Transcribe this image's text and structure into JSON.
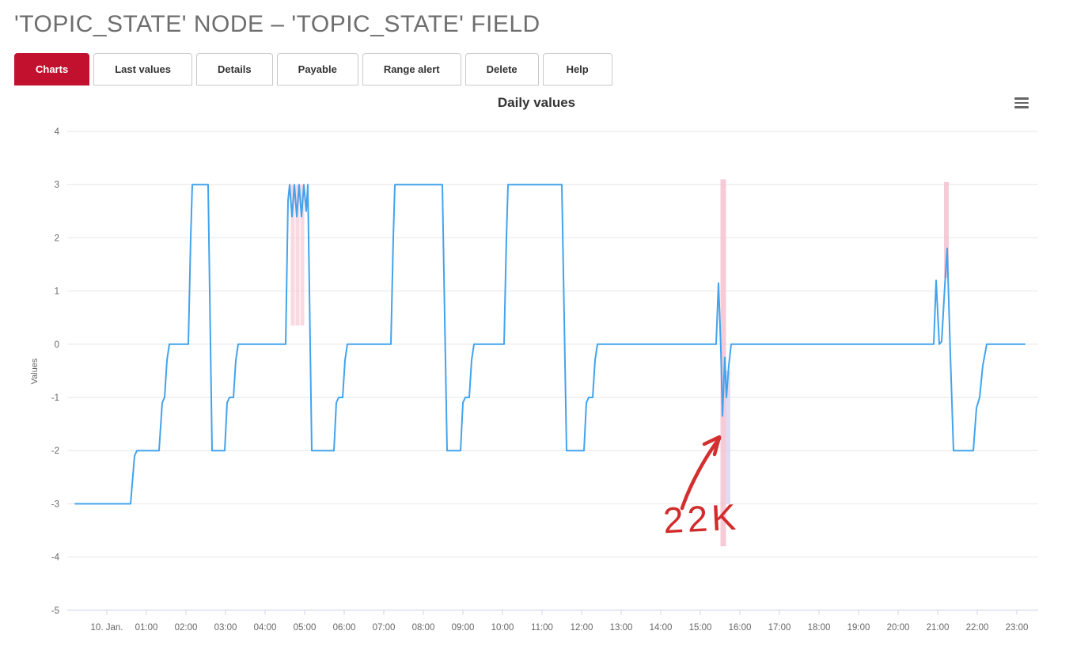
{
  "page": {
    "title": "'TOPIC_STATE' NODE – 'TOPIC_STATE' FIELD"
  },
  "tabs": [
    {
      "label": "Charts",
      "active": true
    },
    {
      "label": "Last values",
      "active": false
    },
    {
      "label": "Details",
      "active": false
    },
    {
      "label": "Payable",
      "active": false
    },
    {
      "label": "Range alert",
      "active": false
    },
    {
      "label": "Delete",
      "active": false
    },
    {
      "label": "Help",
      "active": false
    }
  ],
  "chart": {
    "menu_icon": "hamburger-icon"
  },
  "chart_data": {
    "type": "line",
    "title": "Daily values",
    "xlabel": "",
    "ylabel": "Values",
    "ylim": [
      -5,
      4
    ],
    "grid": true,
    "legend": "none",
    "y_ticks": [
      4,
      3,
      2,
      1,
      0,
      -1,
      -2,
      -3,
      -4,
      -5
    ],
    "x_tick_labels": [
      "10. Jan.",
      "01:00",
      "02:00",
      "03:00",
      "04:00",
      "05:00",
      "06:00",
      "07:00",
      "08:00",
      "09:00",
      "10:00",
      "11:00",
      "12:00",
      "13:00",
      "14:00",
      "15:00",
      "16:00",
      "17:00",
      "18:00",
      "19:00",
      "20:00",
      "21:00",
      "22:00",
      "23:00"
    ],
    "series": [
      {
        "name": "TOPIC_STATE",
        "color": "#43a3ec",
        "points": [
          [
            -0.8,
            -3
          ],
          [
            0.6,
            -3
          ],
          [
            0.7,
            -2.1
          ],
          [
            0.76,
            -2
          ],
          [
            1.32,
            -2
          ],
          [
            1.4,
            -1.1
          ],
          [
            1.46,
            -1
          ],
          [
            1.52,
            -0.3
          ],
          [
            1.58,
            0
          ],
          [
            2.06,
            0
          ],
          [
            2.12,
            2
          ],
          [
            2.16,
            3
          ],
          [
            2.56,
            3
          ],
          [
            2.6,
            1
          ],
          [
            2.66,
            -2
          ],
          [
            2.98,
            -2
          ],
          [
            3.04,
            -1.1
          ],
          [
            3.1,
            -1
          ],
          [
            3.2,
            -1
          ],
          [
            3.26,
            -0.3
          ],
          [
            3.32,
            0
          ],
          [
            4.52,
            0
          ],
          [
            4.58,
            2.7
          ],
          [
            4.62,
            3
          ],
          [
            4.68,
            2.4
          ],
          [
            4.74,
            3
          ],
          [
            4.8,
            2.4
          ],
          [
            4.86,
            3
          ],
          [
            4.92,
            2.4
          ],
          [
            4.98,
            3
          ],
          [
            5.04,
            2.5
          ],
          [
            5.08,
            3
          ],
          [
            5.12,
            1
          ],
          [
            5.18,
            -2
          ],
          [
            5.74,
            -2
          ],
          [
            5.8,
            -1.1
          ],
          [
            5.86,
            -1
          ],
          [
            5.96,
            -1
          ],
          [
            6.02,
            -0.3
          ],
          [
            6.08,
            0
          ],
          [
            7.18,
            0
          ],
          [
            7.24,
            2
          ],
          [
            7.28,
            3
          ],
          [
            8.48,
            3
          ],
          [
            8.54,
            0.5
          ],
          [
            8.6,
            -2
          ],
          [
            8.94,
            -2
          ],
          [
            9.0,
            -1.1
          ],
          [
            9.06,
            -1
          ],
          [
            9.16,
            -1
          ],
          [
            9.22,
            -0.3
          ],
          [
            9.28,
            0
          ],
          [
            10.04,
            0
          ],
          [
            10.1,
            2
          ],
          [
            10.14,
            3
          ],
          [
            11.5,
            3
          ],
          [
            11.56,
            0.5
          ],
          [
            11.62,
            -2
          ],
          [
            12.06,
            -2
          ],
          [
            12.12,
            -1.1
          ],
          [
            12.18,
            -1
          ],
          [
            12.28,
            -1
          ],
          [
            12.34,
            -0.3
          ],
          [
            12.4,
            0
          ],
          [
            15.4,
            0
          ],
          [
            15.46,
            1.15
          ],
          [
            15.52,
            -0.1
          ],
          [
            15.56,
            -1.35
          ],
          [
            15.62,
            -0.25
          ],
          [
            15.66,
            -1.0
          ],
          [
            15.72,
            -0.4
          ],
          [
            15.78,
            0
          ],
          [
            20.9,
            0
          ],
          [
            20.96,
            1.2
          ],
          [
            21.04,
            0
          ],
          [
            21.1,
            0.05
          ],
          [
            21.18,
            1.1
          ],
          [
            21.24,
            1.8
          ],
          [
            21.32,
            -0.2
          ],
          [
            21.4,
            -2
          ],
          [
            21.9,
            -2
          ],
          [
            21.98,
            -1.2
          ],
          [
            22.06,
            -1
          ],
          [
            22.14,
            -0.4
          ],
          [
            22.24,
            0
          ],
          [
            23.2,
            0
          ]
        ]
      }
    ],
    "bands": [
      {
        "x": 4.7,
        "y1": 0.35,
        "y2": 3.0,
        "w": 5,
        "color": "#f6c9d6",
        "opacity": 0.7
      },
      {
        "x": 4.82,
        "y1": 0.35,
        "y2": 3.0,
        "w": 5,
        "color": "#f6c9d6",
        "opacity": 0.7
      },
      {
        "x": 4.94,
        "y1": 0.35,
        "y2": 3.0,
        "w": 5,
        "color": "#f6c9d6",
        "opacity": 0.7
      },
      {
        "x": 15.58,
        "y1": -3.8,
        "y2": 3.1,
        "w": 7,
        "color": "#f3b9cb",
        "opacity": 0.75
      },
      {
        "x": 15.7,
        "y1": -3.0,
        "y2": -0.5,
        "w": 6,
        "color": "#d9d3ef",
        "opacity": 0.8
      },
      {
        "x": 21.22,
        "y1": 1.25,
        "y2": 3.05,
        "w": 6,
        "color": "#f3b9cb",
        "opacity": 0.75
      }
    ],
    "annotation": {
      "text": "22K",
      "color": "#d22b2b"
    }
  }
}
